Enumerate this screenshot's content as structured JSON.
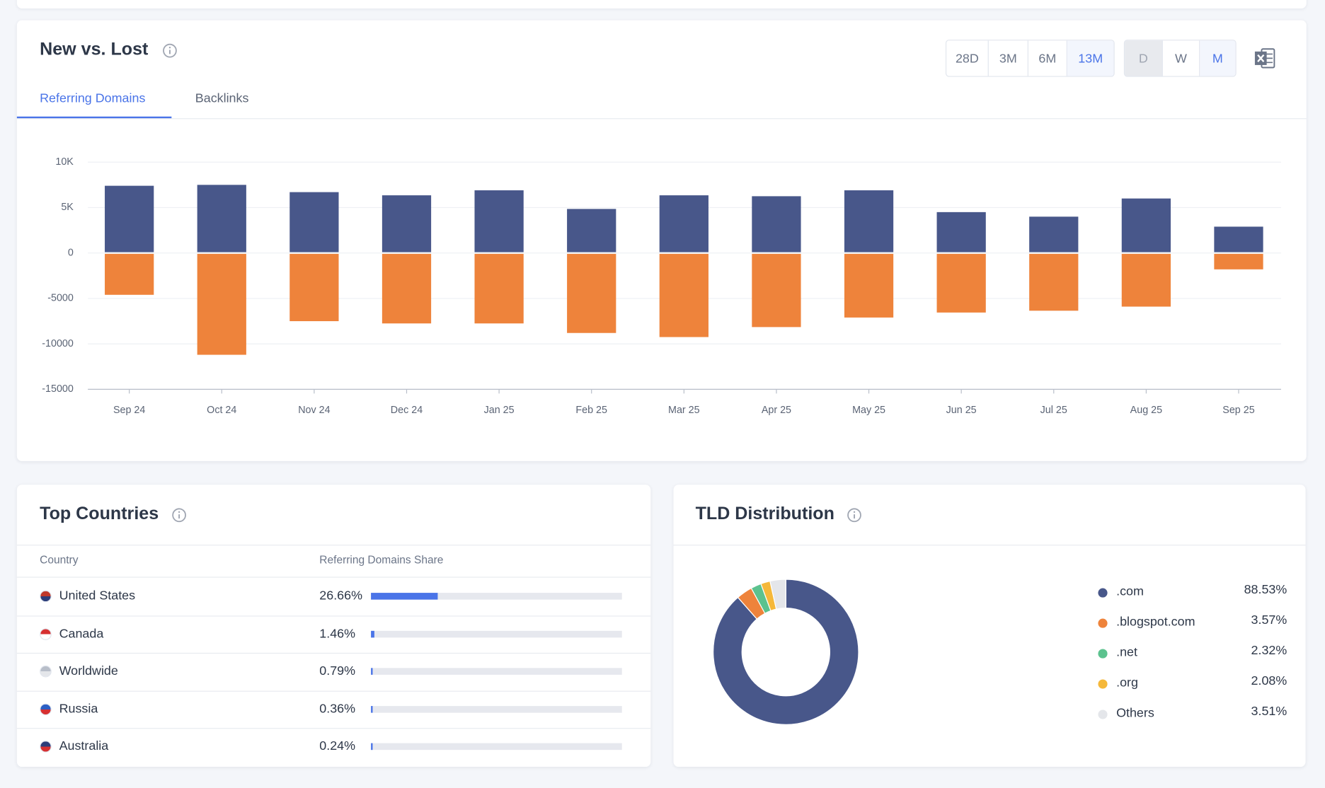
{
  "new_vs_lost": {
    "title": "New vs. Lost",
    "range_buttons": [
      "28D",
      "3M",
      "6M",
      "13M"
    ],
    "granularity_buttons": [
      "D",
      "W",
      "M"
    ],
    "tabs": [
      "Referring Domains",
      "Backlinks"
    ]
  },
  "chart_data": [
    {
      "type": "bar",
      "categories": [
        "Sep 24",
        "Oct 24",
        "Nov 24",
        "Dec 24",
        "Jan 25",
        "Feb 25",
        "Mar 25",
        "Apr 25",
        "May 25",
        "Jun 25",
        "Jul 25",
        "Aug 25",
        "Sep 25"
      ],
      "series": [
        {
          "color": "#48578a",
          "values": [
            7400,
            7500,
            6700,
            6350,
            6900,
            4850,
            6350,
            6250,
            6900,
            4500,
            4000,
            6000,
            2900
          ]
        },
        {
          "color": "#ee833b",
          "values": [
            -4600,
            -11200,
            -7500,
            -7750,
            -7750,
            -8800,
            -9250,
            -8150,
            -7100,
            -6550,
            -6350,
            -5900,
            -1800
          ]
        }
      ],
      "ylim": [
        -15000,
        10000
      ],
      "yticks": [
        -15000,
        -10000,
        -5000,
        0,
        {
          "value": 5000,
          "label": "5K"
        },
        {
          "value": 10000,
          "label": "10K"
        }
      ],
      "grid": true
    },
    {
      "type": "donut",
      "title": "TLD Distribution",
      "categories": [
        ".com",
        ".blogspot.com",
        ".net",
        ".org",
        "Others"
      ],
      "values": [
        88.53,
        3.57,
        2.32,
        2.08,
        3.51
      ],
      "value_labels": [
        "88.53%",
        "3.57%",
        "2.32%",
        "2.08%",
        "3.51%"
      ],
      "colors": [
        "#48578a",
        "#ee833b",
        "#5cc28e",
        "#f5b83a",
        "#e4e6ea"
      ]
    }
  ],
  "top_countries": {
    "title": "Top Countries",
    "columns": [
      "Country",
      "Referring Domains Share"
    ],
    "countries": [
      "United States",
      "Canada",
      "Worldwide",
      "Russia",
      "Australia"
    ],
    "shares": [
      26.66,
      1.46,
      0.79,
      0.36,
      0.24
    ],
    "share_labels": [
      "26.66%",
      "1.46%",
      "0.79%",
      "0.36%",
      "0.24%"
    ],
    "xlim": [
      0,
      100
    ],
    "color": "#4a74e8"
  }
}
